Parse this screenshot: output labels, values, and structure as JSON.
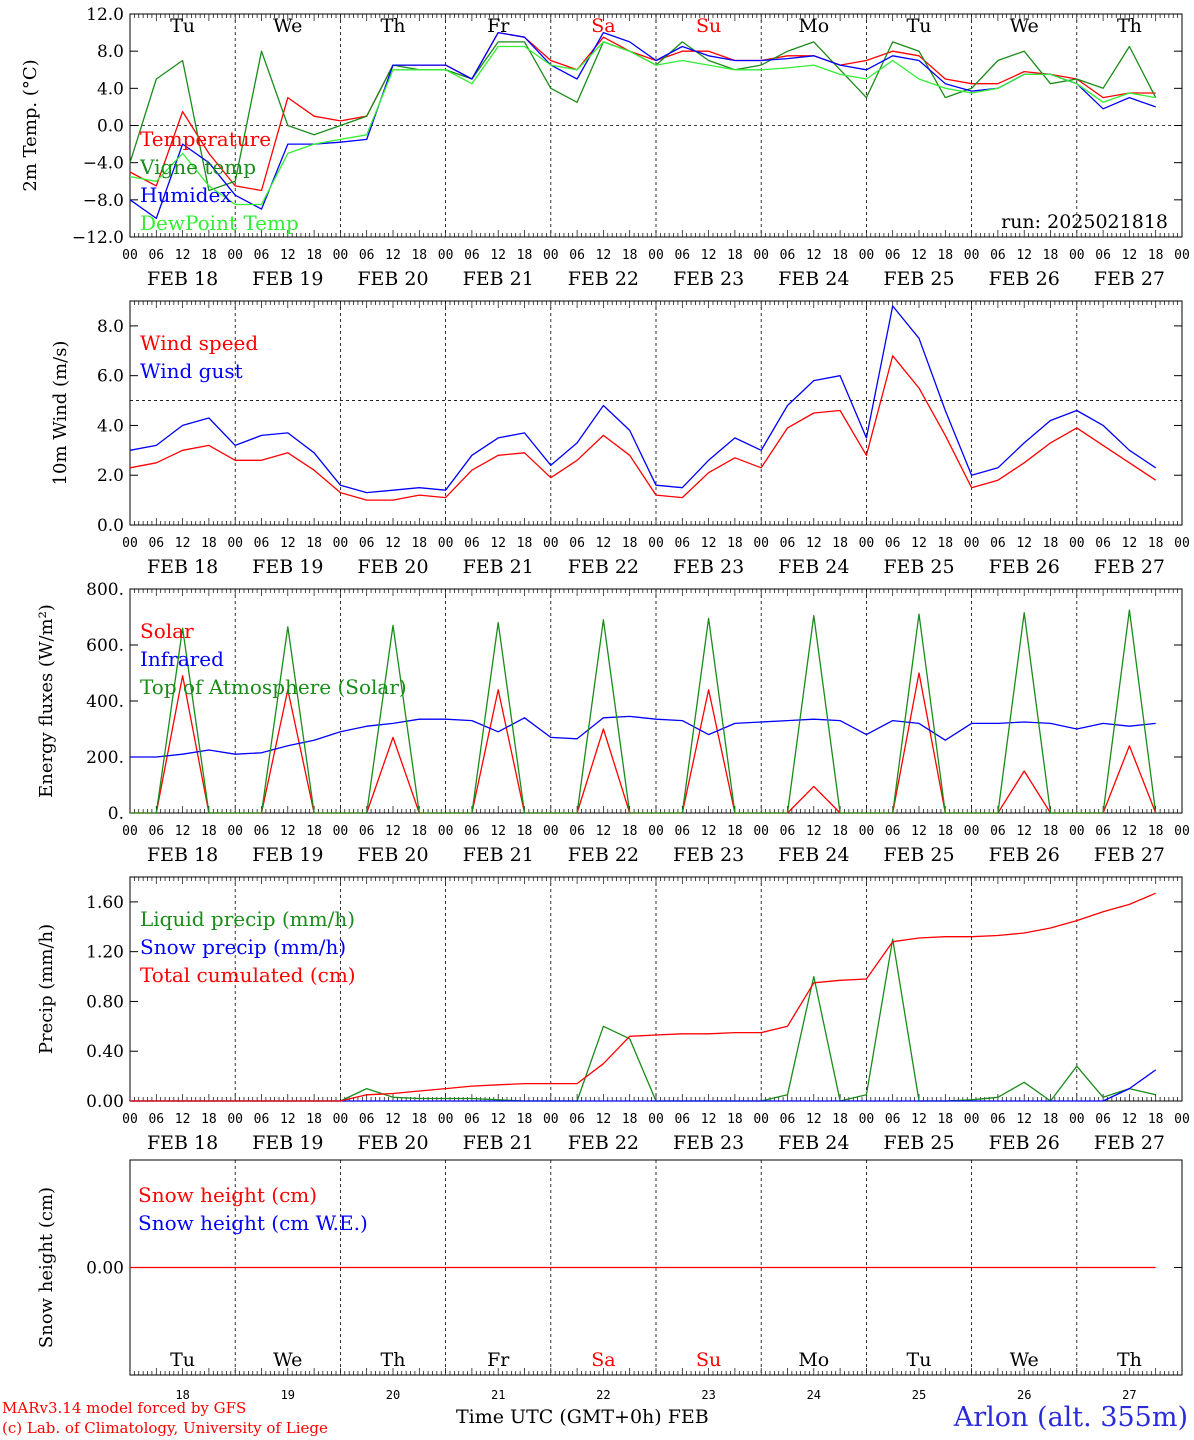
{
  "colors": {
    "red": "#ff0000",
    "green": "#1a8c1a",
    "blue": "#0000ff",
    "lime": "#33ee33",
    "weekend": "#ff0000",
    "axis": "#000000"
  },
  "days": {
    "abbr": [
      "Tu",
      "We",
      "Th",
      "Fr",
      "Sa",
      "Su",
      "Mo",
      "Tu",
      "We",
      "Th"
    ],
    "weekend": [
      false,
      false,
      false,
      false,
      true,
      true,
      false,
      false,
      false,
      false
    ],
    "date_labels": [
      "FEB 18",
      "FEB 19",
      "FEB 20",
      "FEB 21",
      "FEB 22",
      "FEB 23",
      "FEB 24",
      "FEB 25",
      "FEB 26",
      "FEB 27"
    ],
    "numbers": [
      "18",
      "19",
      "20",
      "21",
      "22",
      "23",
      "24",
      "25",
      "26",
      "27"
    ],
    "hour_ticks": [
      "00",
      "06",
      "12",
      "18"
    ],
    "last_tick": "00"
  },
  "footer": {
    "credit_line1": "MARv3.14 model forced by GFS",
    "credit_line2": "(c) Lab. of Climatology, University of Liege",
    "x_title": "Time UTC (GMT+0h)",
    "month": "FEB",
    "station": "Arlon (alt. 355m)"
  },
  "chart_data": [
    {
      "type": "line",
      "ylabel": "2m Temp. (°C)",
      "ylim": [
        -12,
        12
      ],
      "yticks": [
        "12.0",
        "8.0",
        "4.0",
        "0.0",
        "−4.0",
        "−8.0",
        "−12.0"
      ],
      "ytick_values": [
        12,
        8,
        4,
        0,
        -4,
        -8,
        -12
      ],
      "reference_line": 0,
      "annotation": "run: 2025021818",
      "x_unit": "hours from FEB 18 00 UTC, 6-hourly",
      "series": [
        {
          "name": "Temperature",
          "color": "#ff0000",
          "values": [
            -5,
            -6.5,
            1.5,
            -3,
            -6.5,
            -7,
            3,
            1,
            0.5,
            1,
            6.5,
            6.5,
            6.5,
            5,
            10,
            9.5,
            7,
            6,
            9.5,
            8,
            7,
            8,
            8,
            7,
            7,
            7.5,
            7.5,
            6.5,
            7,
            8,
            7.5,
            5,
            4.5,
            4.5,
            5.8,
            5.5,
            5,
            3,
            3.5,
            3.5
          ]
        },
        {
          "name": "Vigne temp",
          "color": "#1a8c1a",
          "values": [
            -4,
            5,
            7,
            -7,
            -6,
            8,
            0,
            -1,
            0,
            1,
            6.5,
            6,
            6,
            5,
            9,
            9,
            4,
            2.5,
            9,
            8,
            6.5,
            9,
            7,
            6,
            6.5,
            8,
            9,
            6,
            3,
            9,
            8,
            3,
            4,
            7,
            8,
            4.5,
            5,
            4,
            8.5,
            3
          ]
        },
        {
          "name": "Humidex",
          "color": "#0000ff",
          "values": [
            -8,
            -10,
            -2,
            -4,
            -7.5,
            -9,
            -2,
            -2,
            -1.8,
            -1.5,
            6.5,
            6.5,
            6.5,
            5,
            10,
            9.5,
            6.5,
            5,
            10,
            9,
            7,
            8.5,
            7.5,
            7,
            7,
            7.2,
            7.5,
            6.5,
            6,
            7.5,
            7,
            4.5,
            3.7,
            4,
            5.5,
            5.5,
            4.5,
            1.8,
            3,
            2
          ]
        },
        {
          "name": "DewPoint Temp",
          "color": "#33ee33",
          "values": [
            -5.5,
            -6,
            -3,
            -6.5,
            -8.5,
            -8.5,
            -3,
            -2,
            -1.5,
            -1,
            6,
            6,
            6,
            4.5,
            8.5,
            8.5,
            6.5,
            6,
            9,
            8,
            6.5,
            7,
            6.5,
            6,
            6,
            6.2,
            6.5,
            5.5,
            5,
            7,
            5,
            4,
            3.5,
            4,
            5.5,
            5.5,
            4.5,
            2.5,
            3.5,
            3
          ]
        }
      ]
    },
    {
      "type": "line",
      "ylabel": "10m Wind (m/s)",
      "ylim": [
        0,
        9
      ],
      "yticks": [
        "8.0",
        "6.0",
        "4.0",
        "2.0",
        "0.0"
      ],
      "ytick_values": [
        8,
        6,
        4,
        2,
        0
      ],
      "reference_line": 5,
      "x_unit": "hours from FEB 18 00 UTC, 6-hourly",
      "series": [
        {
          "name": "Wind speed",
          "color": "#ff0000",
          "values": [
            2.3,
            2.5,
            3.0,
            3.2,
            2.6,
            2.6,
            2.9,
            2.2,
            1.3,
            1.0,
            1.0,
            1.2,
            1.1,
            2.2,
            2.8,
            2.9,
            1.9,
            2.6,
            3.6,
            2.8,
            1.2,
            1.1,
            2.1,
            2.7,
            2.3,
            3.9,
            4.5,
            4.6,
            2.8,
            6.8,
            5.5,
            3.6,
            1.5,
            1.8,
            2.5,
            3.3,
            3.9,
            3.2,
            2.5,
            1.8
          ]
        },
        {
          "name": "Wind gust",
          "color": "#0000ff",
          "values": [
            3.0,
            3.2,
            4.0,
            4.3,
            3.2,
            3.6,
            3.7,
            2.9,
            1.6,
            1.3,
            1.4,
            1.5,
            1.4,
            2.8,
            3.5,
            3.7,
            2.4,
            3.3,
            4.8,
            3.8,
            1.6,
            1.5,
            2.6,
            3.5,
            3.0,
            4.8,
            5.8,
            6.0,
            3.5,
            8.8,
            7.5,
            4.6,
            2.0,
            2.3,
            3.3,
            4.2,
            4.6,
            4.0,
            3.0,
            2.3
          ]
        }
      ]
    },
    {
      "type": "line",
      "ylabel": "Energy fluxes (W/m²)",
      "ylim": [
        0,
        800
      ],
      "yticks": [
        "800.",
        "600.",
        "400.",
        "200.",
        "0."
      ],
      "ytick_values": [
        800,
        600,
        400,
        200,
        0
      ],
      "x_unit": "hours from FEB 18 00 UTC, 6-hourly",
      "series": [
        {
          "name": "Solar",
          "color": "#ff0000",
          "values": [
            0,
            0,
            490,
            0,
            0,
            0,
            440,
            0,
            0,
            0,
            270,
            0,
            0,
            0,
            440,
            0,
            0,
            0,
            300,
            0,
            0,
            0,
            440,
            0,
            0,
            0,
            95,
            0,
            0,
            0,
            500,
            0,
            0,
            0,
            150,
            0,
            0,
            0,
            240,
            0
          ]
        },
        {
          "name": "Infrared",
          "color": "#0000ff",
          "values": [
            200,
            200,
            210,
            225,
            210,
            215,
            240,
            260,
            290,
            310,
            320,
            335,
            335,
            330,
            290,
            340,
            270,
            265,
            340,
            345,
            335,
            330,
            280,
            320,
            325,
            330,
            335,
            330,
            280,
            330,
            320,
            260,
            320,
            320,
            325,
            320,
            300,
            320,
            310,
            320
          ]
        },
        {
          "name": "Top of Atmosphere (Solar)",
          "color": "#1a8c1a",
          "values": [
            0,
            0,
            660,
            0,
            0,
            0,
            665,
            0,
            0,
            0,
            670,
            0,
            0,
            0,
            680,
            0,
            0,
            0,
            690,
            0,
            0,
            0,
            695,
            0,
            0,
            0,
            705,
            0,
            0,
            0,
            710,
            0,
            0,
            0,
            715,
            0,
            0,
            0,
            725,
            0
          ]
        }
      ]
    },
    {
      "type": "line",
      "ylabel": "Precip (mm/h)",
      "ylim": [
        0,
        1.8
      ],
      "yticks": [
        "1.60",
        "1.20",
        "0.80",
        "0.40",
        "0.00"
      ],
      "ytick_values": [
        1.6,
        1.2,
        0.8,
        0.4,
        0.0
      ],
      "x_unit": "hours from FEB 18 00 UTC, 6-hourly",
      "series": [
        {
          "name": "Liquid precip (mm/h)",
          "color": "#1a8c1a",
          "values": [
            0,
            0,
            0,
            0,
            0,
            0,
            0,
            0,
            0,
            0.1,
            0.03,
            0.02,
            0.02,
            0.02,
            0.01,
            0,
            0,
            0,
            0.6,
            0.5,
            0,
            0,
            0,
            0,
            0,
            0.05,
            1.0,
            0,
            0.05,
            1.3,
            0,
            0,
            0.01,
            0.03,
            0.15,
            0,
            0.28,
            0.03,
            0.1,
            0.05
          ]
        },
        {
          "name": "Snow precip (mm/h)",
          "color": "#0000ff",
          "values": [
            0,
            0,
            0,
            0,
            0,
            0,
            0,
            0,
            0,
            0,
            0,
            0,
            0,
            0,
            0,
            0,
            0,
            0,
            0,
            0,
            0,
            0,
            0,
            0,
            0,
            0,
            0,
            0,
            0,
            0,
            0,
            0,
            0,
            0,
            0,
            0,
            0,
            0,
            0.1,
            0.25
          ]
        },
        {
          "name": "Total cumulated (cm)",
          "color": "#ff0000",
          "values": [
            0,
            0,
            0,
            0,
            0,
            0,
            0,
            0,
            0,
            0.05,
            0.06,
            0.08,
            0.1,
            0.12,
            0.13,
            0.14,
            0.14,
            0.14,
            0.3,
            0.52,
            0.53,
            0.54,
            0.54,
            0.55,
            0.55,
            0.6,
            0.95,
            0.97,
            0.98,
            1.28,
            1.31,
            1.32,
            1.32,
            1.33,
            1.35,
            1.39,
            1.45,
            1.52,
            1.58,
            1.67
          ]
        }
      ]
    },
    {
      "type": "line",
      "ylabel": "Snow height (cm)",
      "ylim": [
        -1,
        1
      ],
      "yticks": [
        "0.00"
      ],
      "ytick_values": [
        0
      ],
      "x_unit": "hours from FEB 18 00 UTC, 6-hourly",
      "series": [
        {
          "name": "Snow height (cm)",
          "color": "#ff0000",
          "values": [
            0,
            0,
            0,
            0,
            0,
            0,
            0,
            0,
            0,
            0,
            0,
            0,
            0,
            0,
            0,
            0,
            0,
            0,
            0,
            0,
            0,
            0,
            0,
            0,
            0,
            0,
            0,
            0,
            0,
            0,
            0,
            0,
            0,
            0,
            0,
            0,
            0,
            0,
            0,
            0
          ]
        },
        {
          "name": "Snow height (cm W.E.)",
          "color": "#0000ff",
          "values": []
        }
      ]
    }
  ]
}
